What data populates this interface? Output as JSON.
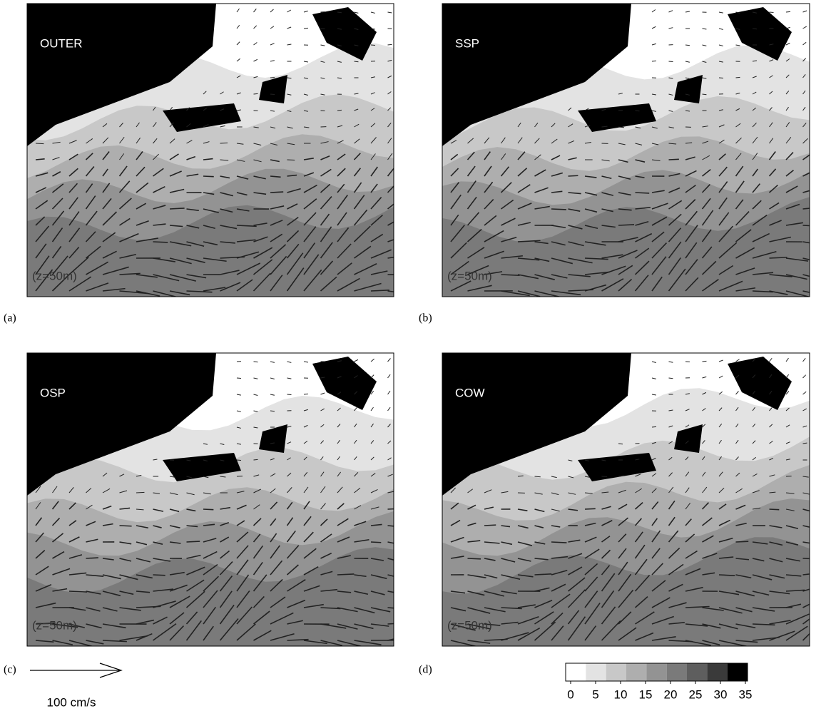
{
  "panels": [
    {
      "label": "OUTER",
      "letter": "(a)",
      "depth": "(z=50m)"
    },
    {
      "label": "SSP",
      "letter": "(b)",
      "depth": "(z=50m)"
    },
    {
      "label": "OSP",
      "letter": "(c)",
      "depth": "(z=50m)"
    },
    {
      "label": "COW",
      "letter": "(d)",
      "depth": "(z=50m)"
    }
  ],
  "reference_arrow": {
    "label": "100 cm/s"
  },
  "colorbar": {
    "ticks": [
      0,
      5,
      10,
      15,
      20,
      25,
      30,
      35
    ],
    "colors": [
      "#ffffff",
      "#e3e3e3",
      "#c8c8c8",
      "#aeaeae",
      "#939393",
      "#7a7a7a",
      "#5e5e5e",
      "#3a3a3a",
      "#000000"
    ]
  }
}
